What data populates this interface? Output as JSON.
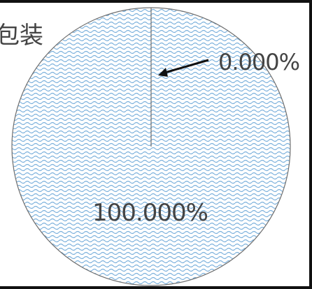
{
  "chart_data": {
    "type": "pie",
    "title": "包装",
    "slices": [
      {
        "label": "0.000%",
        "value": 0.0
      },
      {
        "label": "100.000%",
        "value": 100.0
      }
    ],
    "colors": {
      "fill": "#7ab0dc",
      "background": "#ffffff",
      "stroke": "#6f6f6f",
      "frame": "#111111",
      "text": "#444444"
    }
  }
}
